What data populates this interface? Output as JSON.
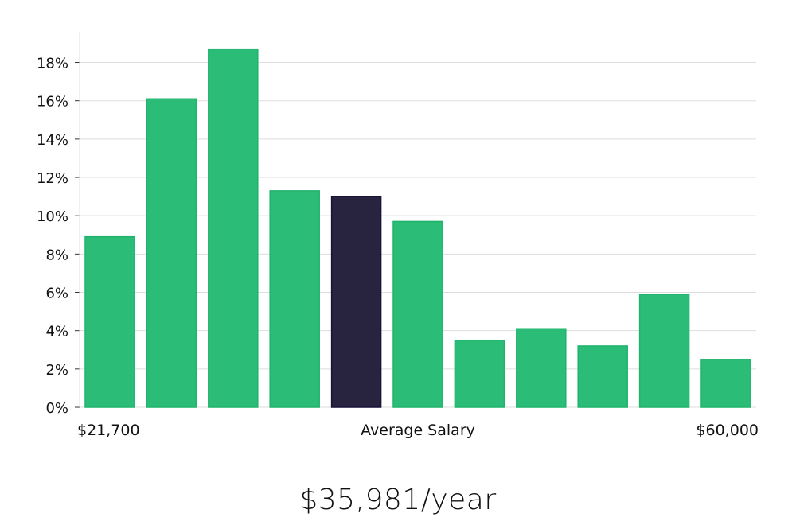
{
  "chart_data": {
    "type": "bar",
    "title": "",
    "xlabel": "Average Salary",
    "ylabel": "",
    "x_min_label": "$21,700",
    "x_max_label": "$60,000",
    "ylim": [
      0,
      19.6
    ],
    "yticks": [
      0,
      2,
      4,
      6,
      8,
      10,
      12,
      14,
      16,
      18
    ],
    "ytick_labels": [
      "0%",
      "2%",
      "4%",
      "6%",
      "8%",
      "10%",
      "12%",
      "14%",
      "16%",
      "18%"
    ],
    "values": [
      8.9,
      16.1,
      18.7,
      11.3,
      11.0,
      9.7,
      3.5,
      4.1,
      3.2,
      5.9,
      2.5
    ],
    "highlight_index": 4,
    "colors": {
      "bar": "#2bbd77",
      "bar_stroke": "#1fb36b",
      "highlight": "#28243f",
      "highlight_stroke": "#171338",
      "grid": "#dddddd",
      "axis": "#e0e0e0"
    }
  },
  "summary": {
    "average_salary": "$35,981/year"
  }
}
